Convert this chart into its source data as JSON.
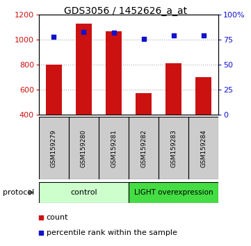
{
  "title": "GDS3056 / 1452626_a_at",
  "samples": [
    "GSM159279",
    "GSM159280",
    "GSM159281",
    "GSM159282",
    "GSM159283",
    "GSM159284"
  ],
  "counts": [
    800,
    1130,
    1070,
    570,
    810,
    700
  ],
  "percentiles": [
    78,
    83,
    82,
    76,
    79,
    79
  ],
  "ylim_left": [
    400,
    1200
  ],
  "ylim_right": [
    0,
    100
  ],
  "yticks_left": [
    400,
    600,
    800,
    1000,
    1200
  ],
  "yticks_right": [
    0,
    25,
    50,
    75,
    100
  ],
  "ytick_labels_right": [
    "0",
    "25",
    "50",
    "75",
    "100%"
  ],
  "bar_color": "#cc1111",
  "dot_color": "#1111cc",
  "bar_width": 0.55,
  "control_color": "#ccffcc",
  "light_color": "#44dd44",
  "protocol_label": "protocol",
  "legend_count_label": "count",
  "legend_pct_label": "percentile rank within the sample",
  "grid_color": "#aaaaaa",
  "label_bg_color": "#cccccc"
}
